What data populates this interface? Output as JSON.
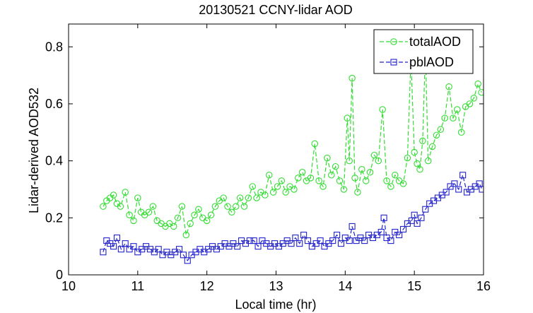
{
  "chart_data": {
    "type": "line",
    "title": "20130521 CCNY-lidar AOD",
    "xlabel": "Local time (hr)",
    "ylabel": "Lidar-derived AOD532",
    "xlim": [
      10,
      16
    ],
    "ylim": [
      0,
      0.88
    ],
    "xticks": [
      "10",
      "11",
      "12",
      "13",
      "14",
      "15",
      "16"
    ],
    "yticks": [
      "0",
      "0.2",
      "0.4",
      "0.6",
      "0.8"
    ],
    "legend_position": "top-right",
    "series": [
      {
        "name": "totalAOD",
        "color": "#33dd33",
        "marker": "circle",
        "points": [
          [
            10.5,
            0.24
          ],
          [
            10.55,
            0.26
          ],
          [
            10.6,
            0.27
          ],
          [
            10.65,
            0.28
          ],
          [
            10.7,
            0.25
          ],
          [
            10.75,
            0.24
          ],
          [
            10.82,
            0.29
          ],
          [
            10.88,
            0.21
          ],
          [
            10.94,
            0.19
          ],
          [
            11.0,
            0.27
          ],
          [
            11.05,
            0.22
          ],
          [
            11.1,
            0.21
          ],
          [
            11.16,
            0.22
          ],
          [
            11.22,
            0.24
          ],
          [
            11.28,
            0.19
          ],
          [
            11.34,
            0.18
          ],
          [
            11.4,
            0.17
          ],
          [
            11.46,
            0.18
          ],
          [
            11.52,
            0.17
          ],
          [
            11.58,
            0.2
          ],
          [
            11.64,
            0.24
          ],
          [
            11.7,
            0.14
          ],
          [
            11.76,
            0.18
          ],
          [
            11.82,
            0.21
          ],
          [
            11.88,
            0.23
          ],
          [
            11.94,
            0.2
          ],
          [
            12.0,
            0.19
          ],
          [
            12.06,
            0.21
          ],
          [
            12.12,
            0.24
          ],
          [
            12.18,
            0.26
          ],
          [
            12.24,
            0.27
          ],
          [
            12.3,
            0.24
          ],
          [
            12.36,
            0.22
          ],
          [
            12.42,
            0.24
          ],
          [
            12.48,
            0.27
          ],
          [
            12.54,
            0.24
          ],
          [
            12.6,
            0.27
          ],
          [
            12.66,
            0.31
          ],
          [
            12.72,
            0.27
          ],
          [
            12.78,
            0.29
          ],
          [
            12.84,
            0.28
          ],
          [
            12.9,
            0.35
          ],
          [
            12.96,
            0.29
          ],
          [
            13.02,
            0.31
          ],
          [
            13.08,
            0.33
          ],
          [
            13.14,
            0.29
          ],
          [
            13.2,
            0.31
          ],
          [
            13.26,
            0.3
          ],
          [
            13.32,
            0.34
          ],
          [
            13.38,
            0.36
          ],
          [
            13.44,
            0.33
          ],
          [
            13.5,
            0.34
          ],
          [
            13.56,
            0.46
          ],
          [
            13.62,
            0.33
          ],
          [
            13.68,
            0.31
          ],
          [
            13.74,
            0.41
          ],
          [
            13.8,
            0.35
          ],
          [
            13.86,
            0.38
          ],
          [
            13.92,
            0.33
          ],
          [
            13.98,
            0.3
          ],
          [
            14.03,
            0.55
          ],
          [
            14.06,
            0.4
          ],
          [
            14.1,
            0.69
          ],
          [
            14.14,
            0.34
          ],
          [
            14.18,
            0.29
          ],
          [
            14.24,
            0.37
          ],
          [
            14.3,
            0.33
          ],
          [
            14.36,
            0.36
          ],
          [
            14.42,
            0.42
          ],
          [
            14.48,
            0.4
          ],
          [
            14.54,
            0.58
          ],
          [
            14.6,
            0.33
          ],
          [
            14.66,
            0.31
          ],
          [
            14.72,
            0.35
          ],
          [
            14.78,
            0.33
          ],
          [
            14.84,
            0.32
          ],
          [
            14.9,
            0.41
          ],
          [
            14.95,
            0.76
          ],
          [
            15.0,
            0.43
          ],
          [
            15.04,
            0.39
          ],
          [
            15.08,
            0.37
          ],
          [
            15.12,
            0.47
          ],
          [
            15.16,
            0.79
          ],
          [
            15.2,
            0.4
          ],
          [
            15.26,
            0.45
          ],
          [
            15.32,
            0.49
          ],
          [
            15.38,
            0.51
          ],
          [
            15.44,
            0.55
          ],
          [
            15.5,
            0.66
          ],
          [
            15.56,
            0.55
          ],
          [
            15.62,
            0.58
          ],
          [
            15.68,
            0.5
          ],
          [
            15.74,
            0.59
          ],
          [
            15.8,
            0.6
          ],
          [
            15.86,
            0.62
          ],
          [
            15.92,
            0.67
          ],
          [
            15.97,
            0.64
          ]
        ]
      },
      {
        "name": "pblAOD",
        "color": "#2222cc",
        "marker": "square",
        "points": [
          [
            10.5,
            0.08
          ],
          [
            10.55,
            0.12
          ],
          [
            10.6,
            0.11
          ],
          [
            10.65,
            0.1
          ],
          [
            10.7,
            0.13
          ],
          [
            10.76,
            0.09
          ],
          [
            10.82,
            0.11
          ],
          [
            10.88,
            0.09
          ],
          [
            10.94,
            0.1
          ],
          [
            11.0,
            0.08
          ],
          [
            11.06,
            0.09
          ],
          [
            11.12,
            0.1
          ],
          [
            11.18,
            0.09
          ],
          [
            11.24,
            0.08
          ],
          [
            11.3,
            0.09
          ],
          [
            11.36,
            0.07
          ],
          [
            11.42,
            0.08
          ],
          [
            11.48,
            0.07
          ],
          [
            11.54,
            0.08
          ],
          [
            11.6,
            0.09
          ],
          [
            11.66,
            0.07
          ],
          [
            11.72,
            0.05
          ],
          [
            11.78,
            0.07
          ],
          [
            11.84,
            0.08
          ],
          [
            11.9,
            0.09
          ],
          [
            11.96,
            0.08
          ],
          [
            12.02,
            0.09
          ],
          [
            12.08,
            0.1
          ],
          [
            12.14,
            0.09
          ],
          [
            12.2,
            0.1
          ],
          [
            12.26,
            0.11
          ],
          [
            12.32,
            0.1
          ],
          [
            12.38,
            0.11
          ],
          [
            12.44,
            0.1
          ],
          [
            12.5,
            0.12
          ],
          [
            12.56,
            0.11
          ],
          [
            12.62,
            0.12
          ],
          [
            12.68,
            0.12
          ],
          [
            12.74,
            0.1
          ],
          [
            12.8,
            0.12
          ],
          [
            12.86,
            0.11
          ],
          [
            12.92,
            0.1
          ],
          [
            12.98,
            0.11
          ],
          [
            13.04,
            0.1
          ],
          [
            13.1,
            0.11
          ],
          [
            13.16,
            0.12
          ],
          [
            13.22,
            0.11
          ],
          [
            13.28,
            0.13
          ],
          [
            13.34,
            0.11
          ],
          [
            13.4,
            0.14
          ],
          [
            13.46,
            0.12
          ],
          [
            13.52,
            0.1
          ],
          [
            13.58,
            0.11
          ],
          [
            13.64,
            0.12
          ],
          [
            13.7,
            0.1
          ],
          [
            13.76,
            0.11
          ],
          [
            13.82,
            0.12
          ],
          [
            13.88,
            0.14
          ],
          [
            13.94,
            0.11
          ],
          [
            14.0,
            0.13
          ],
          [
            14.06,
            0.12
          ],
          [
            14.1,
            0.17
          ],
          [
            14.16,
            0.12
          ],
          [
            14.22,
            0.13
          ],
          [
            14.28,
            0.12
          ],
          [
            14.34,
            0.14
          ],
          [
            14.4,
            0.13
          ],
          [
            14.46,
            0.14
          ],
          [
            14.52,
            0.15
          ],
          [
            14.56,
            0.2
          ],
          [
            14.6,
            0.13
          ],
          [
            14.66,
            0.12
          ],
          [
            14.72,
            0.15
          ],
          [
            14.78,
            0.14
          ],
          [
            14.84,
            0.16
          ],
          [
            14.9,
            0.18
          ],
          [
            14.96,
            0.19
          ],
          [
            15.0,
            0.21
          ],
          [
            15.04,
            0.18
          ],
          [
            15.1,
            0.2
          ],
          [
            15.16,
            0.23
          ],
          [
            15.22,
            0.25
          ],
          [
            15.28,
            0.26
          ],
          [
            15.34,
            0.27
          ],
          [
            15.4,
            0.28
          ],
          [
            15.46,
            0.29
          ],
          [
            15.52,
            0.31
          ],
          [
            15.58,
            0.32
          ],
          [
            15.64,
            0.3
          ],
          [
            15.7,
            0.35
          ],
          [
            15.76,
            0.29
          ],
          [
            15.82,
            0.3
          ],
          [
            15.88,
            0.31
          ],
          [
            15.94,
            0.32
          ],
          [
            15.98,
            0.3
          ]
        ]
      }
    ]
  }
}
